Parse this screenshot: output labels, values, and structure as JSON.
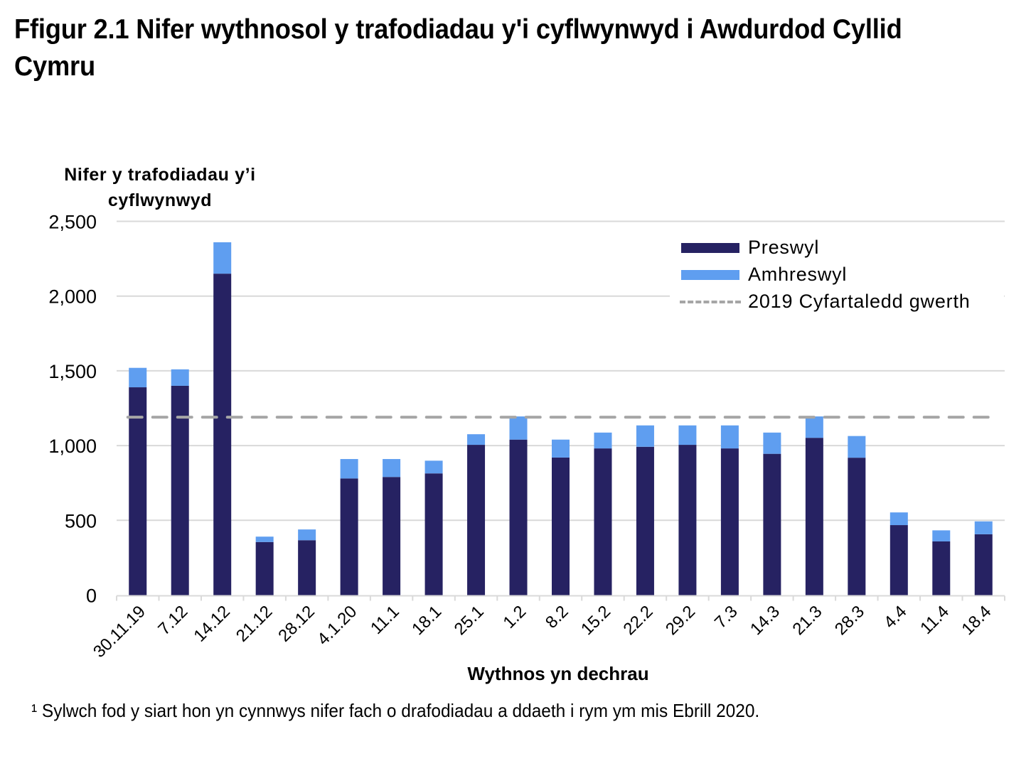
{
  "title": "Ffigur 2.1  Nifer wythnosol y trafodiadau y'i cyflwynwyd i Awdurdod Cyllid Cymru",
  "y_axis_label": "Nifer y trafodiadau y’i cyflwynwyd",
  "x_axis_label": "Wythnos yn dechrau",
  "legend": {
    "items": [
      {
        "label": "Preswyl",
        "color": "#262262",
        "kind": "bar"
      },
      {
        "label": "Amhreswyl",
        "color": "#5F9EF0",
        "kind": "bar"
      },
      {
        "label": "2019 Cyfartaledd gwerth",
        "color": "#A6A6A6",
        "kind": "dashed-line"
      }
    ]
  },
  "footnote": "¹ Sylwch fod y siart hon yn cynnwys nifer fach o drafodiadau a ddaeth i rym ym mis Ebrill 2020.",
  "colors": {
    "preswyl": "#262262",
    "amhreswyl": "#5F9EF0",
    "average_line": "#A6A6A6",
    "gridline": "#D9D9D9"
  },
  "chart_data": {
    "type": "bar",
    "stacked": true,
    "title": "Ffigur 2.1  Nifer wythnosol y trafodiadau y'i cyflwynwyd i Awdurdod Cyllid Cymru",
    "xlabel": "Wythnos yn dechrau",
    "ylabel": "Nifer y trafodiadau y’i cyflwynwyd",
    "ylim": [
      0,
      2500
    ],
    "yticks": [
      0,
      500,
      1000,
      1500,
      2000,
      2500
    ],
    "ytick_labels": [
      "0",
      "500",
      "1,000",
      "1,500",
      "2,000",
      "2,500"
    ],
    "grid": true,
    "legend_position": "top-right",
    "categories": [
      "30.11.19",
      "7.12",
      "14.12",
      "21.12",
      "28.12",
      "4.1.20",
      "11.1",
      "18.1",
      "25.1",
      "1.2",
      "8.2",
      "15.2",
      "22.2",
      "29.2",
      "7.3",
      "14.3",
      "21.3",
      "28.3",
      "4.4",
      "11.4",
      "18.4"
    ],
    "series": [
      {
        "name": "Preswyl",
        "color": "#262262",
        "values": [
          1390,
          1400,
          2150,
          355,
          367,
          780,
          790,
          814,
          1005,
          1040,
          920,
          981,
          992,
          1005,
          981,
          945,
          1052,
          919,
          468,
          359,
          407
        ]
      },
      {
        "name": "Amhreswyl",
        "color": "#5F9EF0",
        "values": [
          130,
          110,
          210,
          36,
          72,
          130,
          120,
          85,
          71,
          155,
          120,
          106,
          143,
          130,
          154,
          142,
          143,
          145,
          85,
          74,
          86
        ]
      }
    ],
    "reference_line": {
      "name": "2019 Cyfartaledd gwerth",
      "value": 1190,
      "style": "dashed",
      "color": "#A6A6A6"
    },
    "annotations": [
      "¹ Sylwch fod y siart hon yn cynnwys nifer fach o drafodiadau a ddaeth i rym ym mis Ebrill 2020."
    ]
  }
}
